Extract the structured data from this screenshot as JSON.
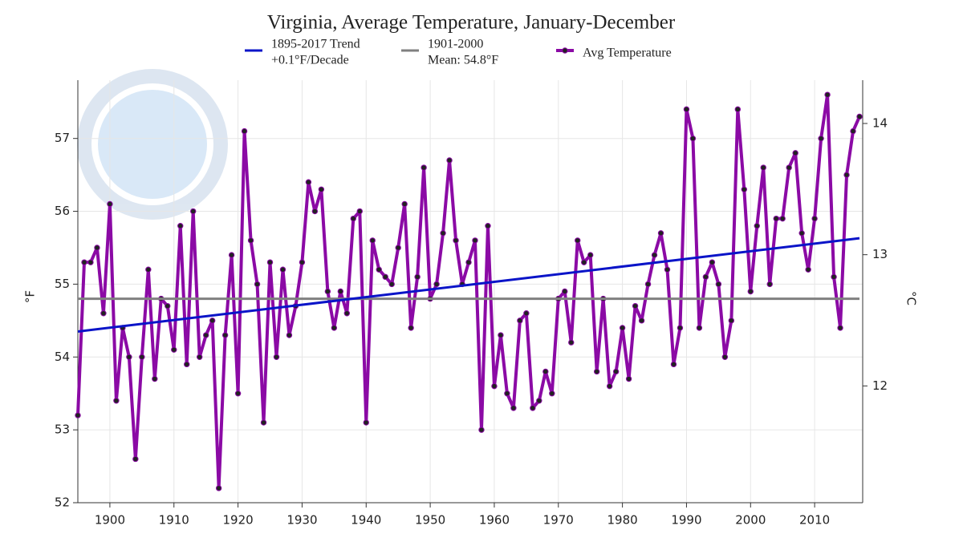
{
  "chart_data": {
    "type": "line",
    "title": "Virginia, Average Temperature, January-December",
    "ylabel": "°F",
    "y2label": "°C",
    "x": [
      1895,
      1896,
      1897,
      1898,
      1899,
      1900,
      1901,
      1902,
      1903,
      1904,
      1905,
      1906,
      1907,
      1908,
      1909,
      1910,
      1911,
      1912,
      1913,
      1914,
      1915,
      1916,
      1917,
      1918,
      1919,
      1920,
      1921,
      1922,
      1923,
      1924,
      1925,
      1926,
      1927,
      1928,
      1929,
      1930,
      1931,
      1932,
      1933,
      1934,
      1935,
      1936,
      1937,
      1938,
      1939,
      1940,
      1941,
      1942,
      1943,
      1944,
      1945,
      1946,
      1947,
      1948,
      1949,
      1950,
      1951,
      1952,
      1953,
      1954,
      1955,
      1956,
      1957,
      1958,
      1959,
      1960,
      1961,
      1962,
      1963,
      1964,
      1965,
      1966,
      1967,
      1968,
      1969,
      1970,
      1971,
      1972,
      1973,
      1974,
      1975,
      1976,
      1977,
      1978,
      1979,
      1980,
      1981,
      1982,
      1983,
      1984,
      1985,
      1986,
      1987,
      1988,
      1989,
      1990,
      1991,
      1992,
      1993,
      1994,
      1995,
      1996,
      1997,
      1998,
      1999,
      2000,
      2001,
      2002,
      2003,
      2004,
      2005,
      2006,
      2007,
      2008,
      2009,
      2010,
      2011,
      2012,
      2013,
      2014,
      2015,
      2016,
      2017
    ],
    "series": [
      {
        "name": "1895-2017 Trend",
        "description": "+0.1°F/Decade",
        "color": "#0a14c8",
        "x": [
          1895,
          2017
        ],
        "values": [
          54.35,
          55.63
        ]
      },
      {
        "name": "1901-2000",
        "description": "Mean: 54.8°F",
        "color": "#808080",
        "x": [
          1895,
          2017
        ],
        "values": [
          54.8,
          54.8
        ]
      },
      {
        "name": "Avg Temperature",
        "color": "#8b0aa5",
        "markers": true,
        "values": [
          53.2,
          55.3,
          55.3,
          55.5,
          54.6,
          56.1,
          53.4,
          54.4,
          54.0,
          52.6,
          54.0,
          55.2,
          53.7,
          54.8,
          54.7,
          54.1,
          55.8,
          53.9,
          56.0,
          54.0,
          54.3,
          54.5,
          52.2,
          54.3,
          55.4,
          53.5,
          57.1,
          55.6,
          55.0,
          53.1,
          55.3,
          54.0,
          55.2,
          54.3,
          54.7,
          55.3,
          56.4,
          56.0,
          56.3,
          54.9,
          54.4,
          54.9,
          54.6,
          55.9,
          56.0,
          53.1,
          55.6,
          55.2,
          55.1,
          55.0,
          55.5,
          56.1,
          54.4,
          55.1,
          56.6,
          54.8,
          55.0,
          55.7,
          56.7,
          55.6,
          55.0,
          55.3,
          55.6,
          53.0,
          55.8,
          53.6,
          54.3,
          53.5,
          53.3,
          54.5,
          54.6,
          53.3,
          53.4,
          53.8,
          53.5,
          54.8,
          54.9,
          54.2,
          55.6,
          55.3,
          55.4,
          53.8,
          54.8,
          53.6,
          53.8,
          54.4,
          53.7,
          54.7,
          54.5,
          55.0,
          55.4,
          55.7,
          55.2,
          53.9,
          54.4,
          57.4,
          57.0,
          54.4,
          55.1,
          55.3,
          55.0,
          54.0,
          54.5,
          57.4,
          56.3,
          54.9,
          55.8,
          56.6,
          55.0,
          55.9,
          55.9,
          56.6,
          56.8,
          55.7,
          55.2,
          55.9,
          57.0,
          57.6,
          55.1,
          54.4,
          56.5,
          57.1,
          57.3
        ]
      }
    ],
    "xlim": [
      1895,
      2017.5
    ],
    "xticks": [
      1900,
      1910,
      1920,
      1930,
      1940,
      1950,
      1960,
      1970,
      1980,
      1990,
      2000,
      2010
    ],
    "ylim": [
      52,
      57.8
    ],
    "yticks": [
      52,
      53,
      54,
      55,
      56,
      57
    ],
    "y2lim": [
      11.11,
      14.33
    ],
    "y2ticks": [
      12,
      13,
      14
    ],
    "grid": true,
    "legend": "top"
  }
}
